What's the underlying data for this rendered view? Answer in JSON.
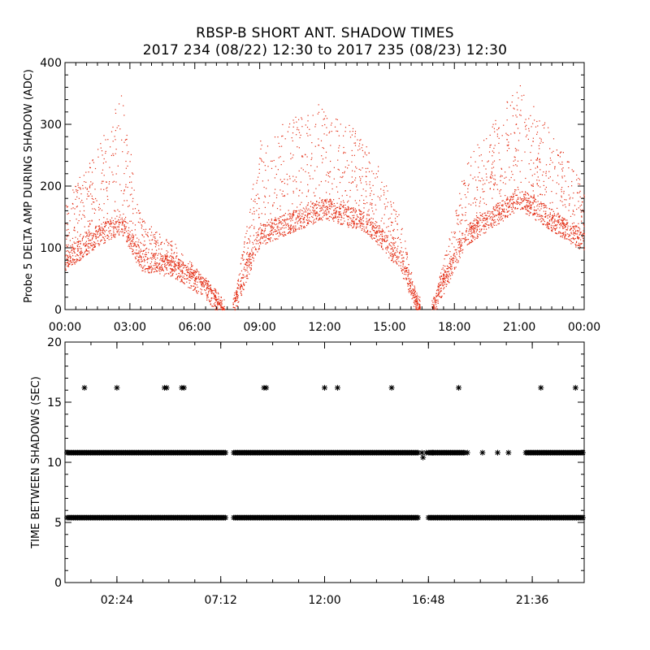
{
  "header": {
    "title": "RBSP-B SHORT ANT. SHADOW TIMES",
    "subtitle": "2017 234 (08/22) 12:30 to 2017 235 (08/23) 12:30"
  },
  "colors": {
    "scatter": "#e32b12",
    "stars": "#000000",
    "axes": "#000000"
  },
  "chart_data": [
    {
      "type": "scatter",
      "title": "",
      "ylabel": "Probe 5 DELTA AMP DURING SHADOW (ADC)",
      "xlabel": "",
      "xlim": [
        "00:00",
        "24:00"
      ],
      "ylim": [
        0,
        400
      ],
      "x_ticks": [
        "00:00",
        "03:00",
        "06:00",
        "09:00",
        "12:00",
        "15:00",
        "18:00",
        "21:00",
        "00:00"
      ],
      "y_ticks": [
        "0",
        "100",
        "200",
        "300",
        "400"
      ],
      "series": [
        {
          "band": "lower",
          "x_hours": [
            0,
            1.5,
            2.6,
            3.5,
            5.0,
            6.5,
            7.3,
            7.8,
            9.0,
            12.0,
            14.0,
            15.5,
            16.3,
            17.0,
            18.5,
            21.0,
            24.0
          ],
          "y": [
            80,
            120,
            140,
            80,
            70,
            35,
            0,
            10,
            120,
            165,
            140,
            80,
            5,
            5,
            120,
            180,
            110
          ]
        },
        {
          "band": "upper",
          "x_hours": [
            0,
            1.5,
            2.6,
            3.5,
            5.0,
            6.5,
            7.3,
            7.8,
            9.0,
            12.0,
            14.0,
            15.5,
            16.3,
            17.0,
            18.5,
            21.0,
            24.0
          ],
          "y": [
            180,
            260,
            350,
            150,
            110,
            50,
            0,
            10,
            280,
            340,
            270,
            150,
            10,
            5,
            240,
            370,
            200
          ]
        }
      ]
    },
    {
      "type": "scatter",
      "title": "",
      "ylabel": "TIME BETWEEN SHADOWS (SEC)",
      "xlabel": "",
      "xlim": [
        "00:00",
        "24:00"
      ],
      "ylim": [
        0,
        20
      ],
      "x_ticks": [
        "02:24",
        "07:12",
        "12:00",
        "16:48",
        "21:36"
      ],
      "y_ticks": [
        "0",
        "5",
        "10",
        "15",
        "20"
      ],
      "series": [
        {
          "name": "",
          "level": 5.4,
          "x_hours_ranges": [
            [
              0.1,
              7.45
            ],
            [
              7.8,
              16.35
            ],
            [
              16.8,
              23.95
            ]
          ]
        },
        {
          "name": "",
          "level": 10.8,
          "x_hours_ranges": [
            [
              0.1,
              7.45
            ],
            [
              7.8,
              16.35
            ],
            [
              16.8,
              18.5
            ],
            [
              21.3,
              23.95
            ]
          ]
        },
        {
          "name": "",
          "level": 10.8,
          "x_hours": [
            18.6,
            19.3,
            20.0,
            16.5,
            16.7,
            17.0,
            20.5
          ]
        },
        {
          "name": "",
          "level": 16.2,
          "x_hours": [
            0.9,
            2.4,
            4.6,
            4.7,
            5.4,
            5.5,
            9.2,
            9.3,
            12.0,
            12.6,
            15.1,
            18.2,
            22.0,
            23.6
          ]
        }
      ]
    }
  ]
}
